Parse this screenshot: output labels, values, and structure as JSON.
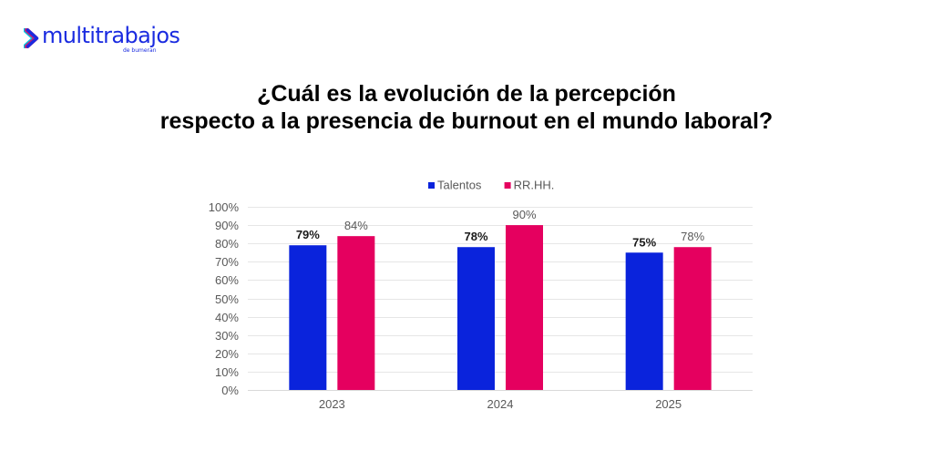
{
  "brand": {
    "name": "multitrabajos",
    "subtitle": "de bumeran",
    "colors": {
      "primary": "#1a2be0",
      "accent_pink": "#e5005f",
      "accent_cyan": "#00c8e6"
    }
  },
  "header": {
    "title_line1": "¿Cuál es la evolución de la percepción",
    "title_line2": "respecto a la presencia de burnout en el mundo laboral?"
  },
  "chart_data": {
    "type": "bar",
    "title": "¿Cuál es la evolución de la percepción respecto a la presencia de burnout en el mundo laboral?",
    "xlabel": "",
    "ylabel": "",
    "categories": [
      "2023",
      "2024",
      "2025"
    ],
    "series": [
      {
        "name": "Talentos",
        "color": "#0a23dc",
        "values": [
          79,
          78,
          75
        ],
        "labels": [
          "79%",
          "78%",
          "75%"
        ],
        "label_style": "bold"
      },
      {
        "name": "RR.HH.",
        "color": "#e5005f",
        "values": [
          84,
          90,
          78
        ],
        "labels": [
          "84%",
          "90%",
          "78%"
        ],
        "label_style": "regular"
      }
    ],
    "ylim": [
      0,
      100
    ],
    "yticks": [
      0,
      10,
      20,
      30,
      40,
      50,
      60,
      70,
      80,
      90,
      100
    ],
    "ytick_labels": [
      "0%",
      "10%",
      "20%",
      "30%",
      "40%",
      "50%",
      "60%",
      "70%",
      "80%",
      "90%",
      "100%"
    ],
    "grid": true,
    "legend_position": "top-center"
  }
}
